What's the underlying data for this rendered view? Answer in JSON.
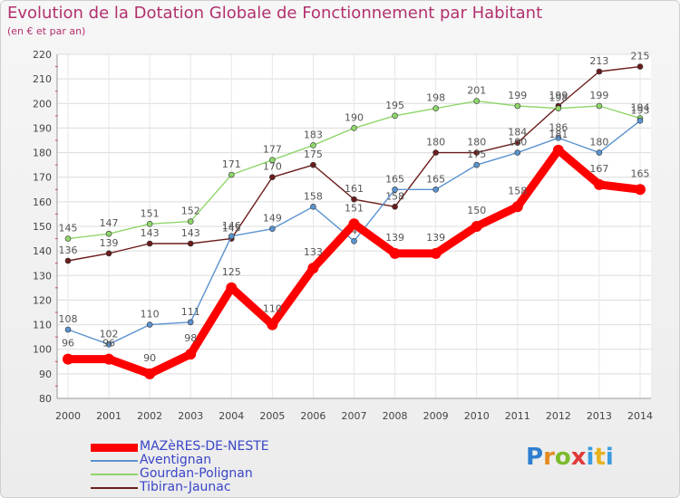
{
  "title": "Evolution de la Dotation Globale de Fonctionnement par Habitant",
  "subtitle": "(en € et par an)",
  "logo": {
    "p": "P",
    "r": "r",
    "o": "o",
    "x": "x",
    "i": "i",
    "t": "t",
    "i2": "i"
  },
  "chart_data": {
    "type": "line",
    "title": "Evolution de la Dotation Globale de Fonctionnement par Habitant",
    "ylabel": "(en € et par an)",
    "ylim": [
      80,
      220
    ],
    "yticks": [
      80,
      90,
      100,
      110,
      120,
      130,
      140,
      150,
      160,
      170,
      180,
      190,
      200,
      210,
      220
    ],
    "categories": [
      "2000",
      "2001",
      "2002",
      "2003",
      "2004",
      "2005",
      "2006",
      "2007",
      "2008",
      "2009",
      "2010",
      "2011",
      "2012",
      "2013",
      "2014"
    ],
    "series": [
      {
        "name": "MAZèRES-DE-NESTE",
        "color": "#ff0000",
        "values": [
          96,
          96,
          90,
          98,
          125,
          110,
          133,
          151,
          139,
          139,
          150,
          158,
          181,
          167,
          165
        ]
      },
      {
        "name": "Aventignan",
        "color": "#5b93cf",
        "values": [
          108,
          102,
          110,
          111,
          146,
          149,
          158,
          144,
          165,
          165,
          175,
          180,
          186,
          180,
          193
        ]
      },
      {
        "name": "Gourdan-Polignan",
        "color": "#8fd66b",
        "values": [
          145,
          147,
          151,
          152,
          171,
          177,
          183,
          190,
          195,
          198,
          201,
          199,
          198,
          199,
          194
        ]
      },
      {
        "name": "Tibiran-Jaunac",
        "color": "#6b1c1c",
        "values": [
          136,
          139,
          143,
          143,
          145,
          170,
          175,
          161,
          158,
          180,
          180,
          184,
          199,
          213,
          215
        ]
      }
    ]
  }
}
